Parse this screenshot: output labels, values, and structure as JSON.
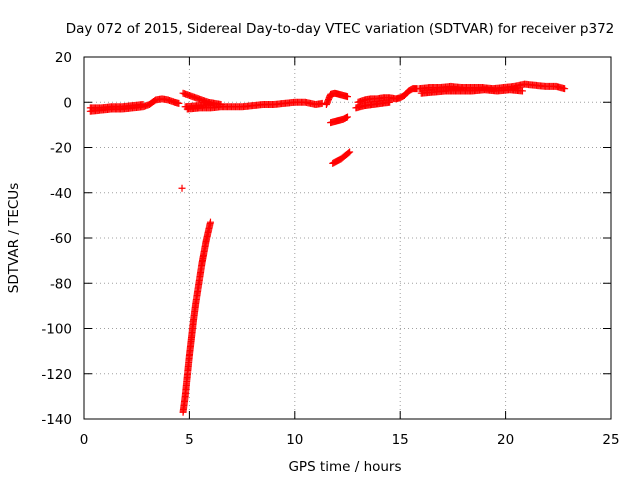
{
  "chart_data": {
    "type": "scatter",
    "title": "Day 072 of 2015, Sidereal Day-to-day VTEC variation (SDTVAR) for receiver p372",
    "xlabel": "GPS time / hours",
    "ylabel": "SDTVAR / TECUs",
    "xlim": [
      0,
      25
    ],
    "ylim": [
      -140,
      20
    ],
    "xticks": [
      0,
      5,
      10,
      15,
      20,
      25
    ],
    "yticks": [
      20,
      0,
      -20,
      -40,
      -60,
      -80,
      -100,
      -120,
      -140
    ],
    "grid": true,
    "marker": "plus",
    "color": "#ff0000",
    "series": [
      {
        "name": "SDTVAR",
        "segments": [
          {
            "x": [
              0.3,
              0.8,
              1.3,
              1.8,
              2.3,
              2.8,
              3.1,
              3.4,
              3.7,
              4.0,
              4.3,
              4.5
            ],
            "y": [
              -4,
              -3.5,
              -3,
              -3,
              -2.5,
              -2,
              -1,
              1,
              1.5,
              1,
              0,
              -0.5
            ]
          },
          {
            "x": [
              0.3,
              0.8,
              1.3,
              1.8,
              2.3,
              2.8
            ],
            "y": [
              -2.5,
              -2.5,
              -2,
              -2,
              -1.5,
              -1
            ]
          },
          {
            "x": [
              4.7,
              5.0,
              5.3,
              5.6,
              5.9,
              6.2,
              6.5
            ],
            "y": [
              4,
              3,
              2,
              1,
              0,
              -0.5,
              -1
            ]
          },
          {
            "x": [
              4.9,
              5.5,
              6.0,
              6.5,
              7.0,
              7.5,
              8.0,
              8.5,
              9.0,
              9.5,
              10.0,
              10.5,
              11.0,
              11.3
            ],
            "y": [
              -3,
              -2.5,
              -2.5,
              -2,
              -2,
              -2,
              -1.5,
              -1,
              -1,
              -0.5,
              0,
              0,
              -1,
              -0.5
            ]
          },
          {
            "x": [
              4.8,
              5.4,
              6.0
            ],
            "y": [
              -2,
              -1.5,
              -1
            ]
          },
          {
            "x": [
              11.5,
              11.7,
              11.9,
              12.1,
              12.3,
              12.5
            ],
            "y": [
              -1,
              3.5,
              4,
              3.5,
              3,
              2.5
            ]
          },
          {
            "x": [
              11.7,
              11.9,
              12.1,
              12.3,
              12.5
            ],
            "y": [
              -9,
              -8.5,
              -8,
              -7.5,
              -6.5
            ]
          },
          {
            "x": [
              11.8,
              12.0,
              12.2,
              12.4,
              12.6
            ],
            "y": [
              -27,
              -26,
              -25,
              -23.5,
              -22
            ]
          },
          {
            "x": [
              13.0,
              13.3,
              13.6,
              13.9,
              14.2,
              14.5,
              14.8,
              15.0,
              15.2,
              15.4,
              15.6,
              15.8
            ],
            "y": [
              0,
              1,
              1.5,
              1.5,
              2,
              2,
              1.5,
              2,
              3,
              5,
              6,
              6
            ]
          },
          {
            "x": [
              12.9,
              13.3,
              13.7,
              14.1,
              14.5
            ],
            "y": [
              -2.5,
              -1.5,
              -1,
              -0.5,
              0
            ]
          },
          {
            "x": [
              15.9,
              16.4,
              16.9,
              17.4,
              17.9,
              18.4,
              18.9,
              19.4,
              19.9,
              20.4,
              20.9,
              21.4,
              21.9,
              22.4,
              22.8
            ],
            "y": [
              6,
              6.5,
              6.5,
              7,
              6.5,
              6.5,
              6.5,
              6,
              6.5,
              7,
              8,
              7.5,
              7,
              7,
              6
            ]
          },
          {
            "x": [
              16.0,
              16.6,
              17.2,
              17.8,
              18.4,
              19.0,
              19.6,
              20.2,
              20.8
            ],
            "y": [
              4,
              4.5,
              5,
              5,
              5,
              5.5,
              5,
              5.5,
              5
            ]
          },
          {
            "x": [
              4.65
            ],
            "y": [
              -38
            ]
          },
          {
            "x": [
              4.7,
              4.8,
              4.9,
              5.0,
              5.1,
              5.2,
              5.3,
              5.4,
              5.5,
              5.6,
              5.7,
              5.8,
              5.9,
              6.0
            ],
            "y": [
              -137,
              -130,
              -121,
              -112,
              -104,
              -96,
              -89,
              -83,
              -77,
              -71,
              -66,
              -61,
              -57,
              -53
            ]
          }
        ]
      }
    ]
  }
}
